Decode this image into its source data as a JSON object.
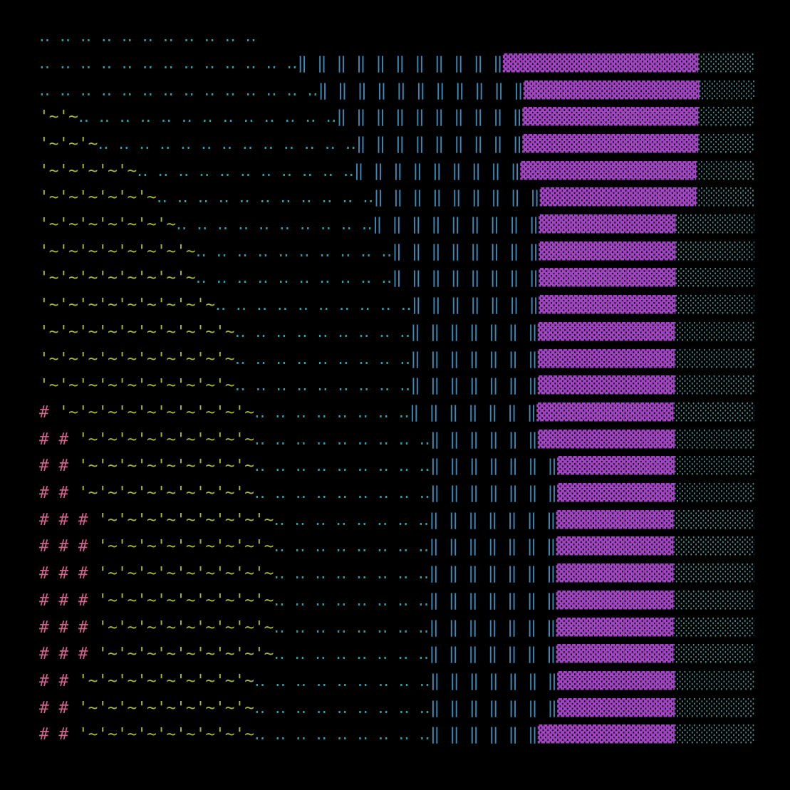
{
  "rows": [
    {
      "dots": "‥ ‥ ‥ ‥ ‥ ‥ ‥ ‥ ‥ ‥ ‥"
    },
    {
      "dots": "‥ ‥ ‥ ‥ ‥ ‥ ‥ ‥ ‥ ‥ ‥ ‥ ‥",
      "bars": "‖ ‖ ‖ ‖ ‖ ‖ ‖ ‖ ‖ ‖ ‖",
      "blocks": "▓▓▓▓▓▓▓▓▓▓▓▓▓▓▓▓▓▓▓▓",
      "shade": "░░░░░░░"
    },
    {
      "dots": "‥ ‥ ‥ ‥ ‥ ‥ ‥ ‥ ‥ ‥ ‥ ‥ ‥ ‥",
      "bars": "‖ ‖ ‖ ‖ ‖ ‖ ‖ ‖ ‖ ‖ ‖",
      "blocks": "▓▓▓▓▓▓▓▓▓▓▓▓▓▓▓▓▓▓",
      "shade": "░░░░░░░"
    },
    {
      "wave": "'~'~",
      "dots": "‥ ‥ ‥ ‥ ‥ ‥ ‥ ‥ ‥ ‥ ‥ ‥ ‥",
      "bars": "‖ ‖ ‖ ‖ ‖ ‖ ‖ ‖ ‖ ‖",
      "blocks": "▓▓▓▓▓▓▓▓▓▓▓▓▓▓▓▓▓▓",
      "shade": "░░░░░░░"
    },
    {
      "wave": "'~'~'~",
      "dots": "‥ ‥ ‥ ‥ ‥ ‥ ‥ ‥ ‥ ‥ ‥ ‥ ‥",
      "bars": "‖ ‖ ‖ ‖ ‖ ‖ ‖ ‖ ‖",
      "blocks": "▓▓▓▓▓▓▓▓▓▓▓▓▓▓▓▓▓▓",
      "shade": "░░░░░░░"
    },
    {
      "wave": "'~'~'~'~'~",
      "dots": "‥ ‥ ‥ ‥ ‥ ‥ ‥ ‥ ‥ ‥ ‥",
      "bars": "‖ ‖ ‖ ‖ ‖ ‖ ‖ ‖ ‖",
      "blocks": "▓▓▓▓▓▓▓▓▓▓▓▓▓▓▓▓▓▓",
      "shade": "░░░░░░░"
    },
    {
      "wave": "'~'~'~'~'~'~",
      "dots": "‥ ‥ ‥ ‥ ‥ ‥ ‥ ‥ ‥ ‥ ‥",
      "bars": "‖ ‖ ‖ ‖ ‖ ‖ ‖ ‖ ‖",
      "blocks": "▓▓▓▓▓▓▓▓▓▓▓▓▓▓▓▓",
      "shade": "░░░░░░░"
    },
    {
      "wave": "'~'~'~'~'~'~'~",
      "dots": "‥ ‥ ‥ ‥ ‥ ‥ ‥ ‥ ‥ ‥",
      "bars": "‖ ‖ ‖ ‖ ‖ ‖ ‖ ‖ ‖",
      "blocks": "▓▓▓▓▓▓▓▓▓▓▓▓▓▓",
      "shade": "░░░░░░░░░"
    },
    {
      "wave": "'~'~'~'~'~'~'~'~",
      "dots": "‥ ‥ ‥ ‥ ‥ ‥ ‥ ‥ ‥ ‥",
      "bars": "‖ ‖ ‖ ‖ ‖ ‖ ‖ ‖",
      "blocks": "▓▓▓▓▓▓▓▓▓▓▓▓▓▓",
      "shade": "░░░░░░░░░"
    },
    {
      "wave": "'~'~'~'~'~'~'~'~",
      "dots": "‥ ‥ ‥ ‥ ‥ ‥ ‥ ‥ ‥ ‥",
      "bars": "‖ ‖ ‖ ‖ ‖ ‖ ‖ ‖",
      "blocks": "▓▓▓▓▓▓▓▓▓▓▓▓▓▓",
      "shade": "░░░░░░░░░"
    },
    {
      "wave": "'~'~'~'~'~'~'~'~'~",
      "dots": "‥ ‥ ‥ ‥ ‥ ‥ ‥ ‥ ‥ ‥",
      "bars": "‖ ‖ ‖ ‖ ‖ ‖ ‖",
      "blocks": "▓▓▓▓▓▓▓▓▓▓▓▓▓▓",
      "shade": "░░░░░░░░░"
    },
    {
      "wave": "'~'~'~'~'~'~'~'~'~'~",
      "dots": "‥ ‥ ‥ ‥ ‥ ‥ ‥ ‥ ‥",
      "bars": "‖ ‖ ‖ ‖ ‖ ‖ ‖",
      "blocks": "▓▓▓▓▓▓▓▓▓▓▓▓▓▓",
      "shade": "░░░░░░░░░"
    },
    {
      "wave": "'~'~'~'~'~'~'~'~'~'~",
      "dots": "‥ ‥ ‥ ‥ ‥ ‥ ‥ ‥ ‥",
      "bars": "‖ ‖ ‖ ‖ ‖ ‖ ‖",
      "blocks": "▓▓▓▓▓▓▓▓▓▓▓▓▓▓",
      "shade": "░░░░░░░░░"
    },
    {
      "wave": "'~'~'~'~'~'~'~'~'~'~",
      "dots": "‥ ‥ ‥ ‥ ‥ ‥ ‥ ‥ ‥",
      "bars": "‖ ‖ ‖ ‖ ‖ ‖ ‖",
      "blocks": "▓▓▓▓▓▓▓▓▓▓▓▓▓▓",
      "shade": "░░░░░░░░░"
    },
    {
      "hash": "# ",
      "wave": "'~'~'~'~'~'~'~'~'~'~",
      "dots": "‥ ‥ ‥ ‥ ‥ ‥ ‥ ‥",
      "bars": "‖ ‖ ‖ ‖ ‖ ‖ ‖",
      "blocks": "▓▓▓▓▓▓▓▓▓▓▓▓▓▓",
      "shade": "░░░░░░░░░"
    },
    {
      "hash": "# # ",
      "wave": "'~'~'~'~'~'~'~'~'~",
      "dots": "‥ ‥ ‥ ‥ ‥ ‥ ‥ ‥ ‥",
      "bars": "‖ ‖ ‖ ‖ ‖ ‖",
      "blocks": "▓▓▓▓▓▓▓▓▓▓▓▓▓▓",
      "shade": "░░░░░░░░░"
    },
    {
      "hash": "# # ",
      "wave": "'~'~'~'~'~'~'~'~'~",
      "dots": "‥ ‥ ‥ ‥ ‥ ‥ ‥ ‥ ‥",
      "bars": "‖ ‖ ‖ ‖ ‖ ‖ ‖",
      "blocks": "▓▓▓▓▓▓▓▓▓▓▓▓",
      "shade": "░░░░░░░░░"
    },
    {
      "hash": "# # ",
      "wave": "'~'~'~'~'~'~'~'~'~",
      "dots": "‥ ‥ ‥ ‥ ‥ ‥ ‥ ‥ ‥",
      "bars": "‖ ‖ ‖ ‖ ‖ ‖ ‖",
      "blocks": "▓▓▓▓▓▓▓▓▓▓▓▓",
      "shade": "░░░░░░░░░"
    },
    {
      "hash": "# # # ",
      "wave": "'~'~'~'~'~'~'~'~'~",
      "dots": "‥ ‥ ‥ ‥ ‥ ‥ ‥ ‥",
      "bars": "‖ ‖ ‖ ‖ ‖ ‖ ‖",
      "blocks": "▓▓▓▓▓▓▓▓▓▓▓▓",
      "shade": "░░░░░░░░░"
    },
    {
      "hash": "# # # ",
      "wave": "'~'~'~'~'~'~'~'~'~",
      "dots": "‥ ‥ ‥ ‥ ‥ ‥ ‥ ‥",
      "bars": "‖ ‖ ‖ ‖ ‖ ‖ ‖",
      "blocks": "▓▓▓▓▓▓▓▓▓▓▓▓",
      "shade": "░░░░░░░░░"
    },
    {
      "hash": "# # # ",
      "wave": "'~'~'~'~'~'~'~'~'~",
      "dots": "‥ ‥ ‥ ‥ ‥ ‥ ‥ ‥",
      "bars": "‖ ‖ ‖ ‖ ‖ ‖ ‖",
      "blocks": "▓▓▓▓▓▓▓▓▓▓▓▓",
      "shade": "░░░░░░░░░"
    },
    {
      "hash": "# # # ",
      "wave": "'~'~'~'~'~'~'~'~'~",
      "dots": "‥ ‥ ‥ ‥ ‥ ‥ ‥ ‥",
      "bars": "‖ ‖ ‖ ‖ ‖ ‖ ‖",
      "blocks": "▓▓▓▓▓▓▓▓▓▓▓▓",
      "shade": "░░░░░░░░░"
    },
    {
      "hash": "# # # ",
      "wave": "'~'~'~'~'~'~'~'~'~",
      "dots": "‥ ‥ ‥ ‥ ‥ ‥ ‥ ‥",
      "bars": "‖ ‖ ‖ ‖ ‖ ‖ ‖",
      "blocks": "▓▓▓▓▓▓▓▓▓▓▓▓",
      "shade": "░░░░░░░░░"
    },
    {
      "hash": "# # # ",
      "wave": "'~'~'~'~'~'~'~'~'~",
      "dots": "‥ ‥ ‥ ‥ ‥ ‥ ‥ ‥",
      "bars": "‖ ‖ ‖ ‖ ‖ ‖ ‖",
      "blocks": "▓▓▓▓▓▓▓▓▓▓▓▓",
      "shade": "░░░░░░░░░"
    },
    {
      "hash": "# # ",
      "wave": "'~'~'~'~'~'~'~'~'~",
      "dots": "‥ ‥ ‥ ‥ ‥ ‥ ‥ ‥ ‥",
      "bars": "‖ ‖ ‖ ‖ ‖ ‖ ‖",
      "blocks": "▓▓▓▓▓▓▓▓▓▓▓▓",
      "shade": "░░░░░░░░░"
    },
    {
      "hash": "# # ",
      "wave": "'~'~'~'~'~'~'~'~'~",
      "dots": "‥ ‥ ‥ ‥ ‥ ‥ ‥ ‥ ‥",
      "bars": "‖ ‖ ‖ ‖ ‖ ‖ ‖",
      "blocks": "▓▓▓▓▓▓▓▓▓▓▓▓",
      "shade": "░░░░░░░░░"
    },
    {
      "hash": "# # ",
      "wave": "'~'~'~'~'~'~'~'~'~",
      "dots": "‥ ‥ ‥ ‥ ‥ ‥ ‥ ‥ ‥",
      "bars": "‖ ‖ ‖ ‖ ‖ ‖",
      "blocks": "▓▓▓▓▓▓▓▓▓▓▓▓▓▓",
      "shade": "░░░░░░░░░"
    }
  ]
}
